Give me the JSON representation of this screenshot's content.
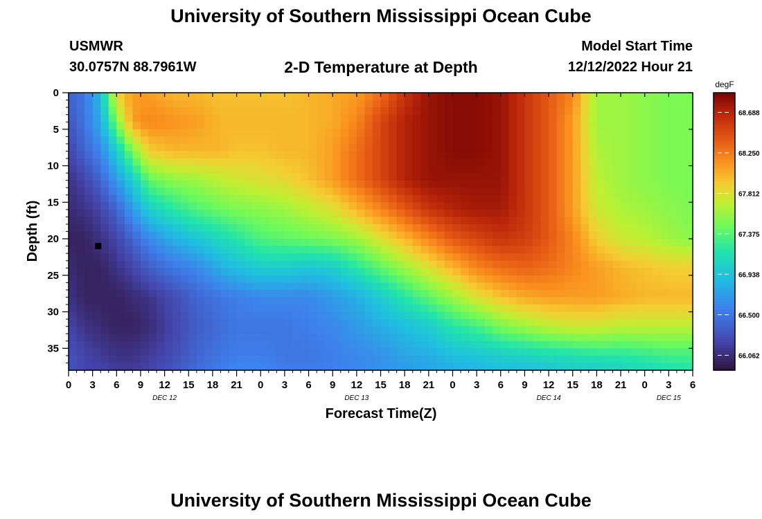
{
  "page": {
    "title_top": "University of Southern Mississippi Ocean Cube",
    "title_bottom": "University of Southern Mississippi Ocean Cube",
    "station_name": "USMWR",
    "station_coords": "30.0757N  88.7961W",
    "plot_title": "2-D Temperature at Depth",
    "model_label": "Model Start Time",
    "model_time": "12/12/2022 Hour 21"
  },
  "chart_data": {
    "type": "heatmap",
    "title": "2-D Temperature at Depth",
    "xlabel": "Forecast Time(Z)",
    "ylabel": "Depth (ft)",
    "x_tick_labels": [
      "0",
      "3",
      "6",
      "9",
      "12",
      "15",
      "18",
      "21",
      "0",
      "3",
      "6",
      "9",
      "12",
      "15",
      "18",
      "21",
      "0",
      "3",
      "6",
      "9",
      "12",
      "15",
      "18",
      "21",
      "0",
      "3",
      "6"
    ],
    "date_labels": [
      {
        "label": "DEC 12",
        "tick_index": 4
      },
      {
        "label": "DEC 13",
        "tick_index": 12
      },
      {
        "label": "DEC 14",
        "tick_index": 20
      },
      {
        "label": "DEC 15",
        "tick_index": 25
      }
    ],
    "xlim_hours": [
      0,
      78
    ],
    "y_ticks": [
      0,
      5,
      10,
      15,
      20,
      25,
      30,
      35
    ],
    "ylim": [
      0,
      38
    ],
    "colorbar": {
      "unit": "degF",
      "ticks": [
        "68.688",
        "68.250",
        "67.812",
        "67.375",
        "66.938",
        "66.500",
        "66.062"
      ],
      "range": [
        65.9,
        68.9
      ]
    },
    "marker": {
      "hour": 3.7,
      "depth": 21
    },
    "grid_hours": [
      0,
      2,
      4,
      6,
      8,
      10,
      13,
      16,
      19,
      21,
      24,
      27,
      30,
      33,
      36,
      39,
      42,
      45,
      48,
      51,
      54,
      57,
      60,
      63,
      66,
      69,
      72,
      75,
      78
    ],
    "grid_depths": [
      0,
      4,
      8,
      12,
      16,
      20,
      24,
      28,
      32,
      36,
      38
    ],
    "values": [
      [
        66.4,
        66.5,
        66.9,
        67.9,
        68.1,
        68.1,
        68.0,
        68.0,
        67.95,
        67.95,
        67.95,
        67.95,
        68.0,
        68.05,
        68.1,
        68.3,
        68.6,
        68.8,
        68.85,
        68.85,
        68.8,
        68.6,
        68.4,
        68.2,
        67.6,
        67.6,
        67.55,
        67.5,
        67.5
      ],
      [
        66.3,
        66.5,
        66.8,
        67.5,
        68.1,
        68.2,
        68.15,
        68.1,
        68.0,
        68.0,
        68.0,
        68.0,
        68.0,
        68.05,
        68.2,
        68.5,
        68.7,
        68.8,
        68.85,
        68.85,
        68.8,
        68.6,
        68.4,
        68.1,
        67.6,
        67.6,
        67.55,
        67.5,
        67.5
      ],
      [
        66.2,
        66.4,
        66.6,
        67.0,
        67.5,
        67.9,
        68.0,
        68.0,
        68.0,
        67.95,
        67.95,
        68.0,
        68.0,
        68.1,
        68.3,
        68.5,
        68.7,
        68.8,
        68.85,
        68.85,
        68.8,
        68.6,
        68.4,
        68.1,
        67.65,
        67.6,
        67.55,
        67.5,
        67.5
      ],
      [
        66.1,
        66.2,
        66.4,
        66.7,
        67.0,
        67.4,
        67.55,
        67.6,
        67.7,
        67.75,
        67.8,
        67.85,
        67.95,
        68.1,
        68.3,
        68.5,
        68.7,
        68.8,
        68.8,
        68.8,
        68.8,
        68.6,
        68.4,
        68.1,
        67.7,
        67.6,
        67.55,
        67.5,
        67.5
      ],
      [
        66.05,
        66.1,
        66.2,
        66.4,
        66.7,
        67.0,
        67.2,
        67.35,
        67.45,
        67.5,
        67.55,
        67.6,
        67.7,
        67.8,
        68.0,
        68.2,
        68.4,
        68.6,
        68.7,
        68.75,
        68.75,
        68.6,
        68.4,
        68.1,
        67.75,
        67.65,
        67.6,
        67.55,
        67.5
      ],
      [
        66.0,
        66.0,
        66.1,
        66.2,
        66.4,
        66.6,
        66.8,
        66.95,
        67.1,
        67.2,
        67.35,
        67.4,
        67.45,
        67.5,
        67.6,
        67.8,
        68.0,
        68.2,
        68.4,
        68.5,
        68.6,
        68.55,
        68.4,
        68.2,
        67.9,
        67.75,
        67.7,
        67.6,
        67.55
      ],
      [
        66.05,
        66.0,
        66.0,
        66.1,
        66.2,
        66.35,
        66.5,
        66.6,
        66.8,
        66.9,
        67.0,
        67.0,
        66.95,
        67.0,
        67.2,
        67.4,
        67.6,
        67.8,
        68.0,
        68.2,
        68.3,
        68.35,
        68.3,
        68.2,
        68.1,
        68.0,
        67.95,
        67.9,
        67.9
      ],
      [
        66.1,
        66.0,
        66.0,
        66.0,
        66.05,
        66.1,
        66.25,
        66.4,
        66.5,
        66.55,
        66.6,
        66.6,
        66.6,
        66.7,
        66.8,
        67.0,
        67.2,
        67.4,
        67.6,
        67.8,
        67.95,
        68.05,
        68.1,
        68.1,
        68.1,
        68.05,
        68.0,
        68.0,
        68.0
      ],
      [
        66.2,
        66.1,
        66.05,
        66.0,
        66.0,
        66.05,
        66.2,
        66.35,
        66.45,
        66.5,
        66.5,
        66.5,
        66.55,
        66.6,
        66.7,
        66.8,
        66.9,
        67.0,
        67.2,
        67.3,
        67.5,
        67.6,
        67.7,
        67.75,
        67.75,
        67.7,
        67.7,
        67.7,
        67.7
      ],
      [
        66.3,
        66.2,
        66.15,
        66.1,
        66.1,
        66.15,
        66.25,
        66.4,
        66.5,
        66.55,
        66.55,
        66.5,
        66.5,
        66.55,
        66.6,
        66.65,
        66.75,
        66.8,
        66.9,
        66.95,
        67.0,
        67.05,
        67.1,
        67.15,
        67.2,
        67.2,
        67.25,
        67.3,
        67.3
      ],
      [
        66.3,
        66.2,
        66.2,
        66.15,
        66.15,
        66.2,
        66.3,
        66.45,
        66.55,
        66.6,
        66.6,
        66.55,
        66.55,
        66.55,
        66.6,
        66.65,
        66.7,
        66.75,
        66.8,
        66.85,
        66.9,
        66.9,
        66.95,
        67.0,
        67.0,
        67.05,
        67.1,
        67.15,
        67.2
      ]
    ]
  }
}
